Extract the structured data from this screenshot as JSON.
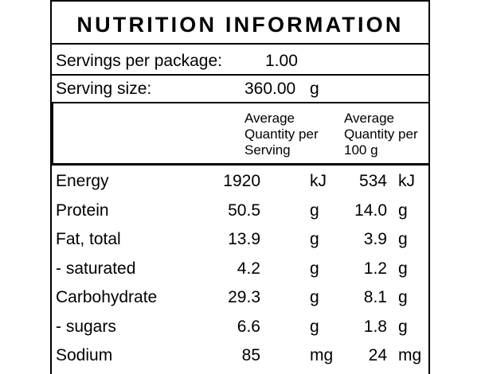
{
  "title": "NUTRITION INFORMATION",
  "servings": {
    "label": "Servings per package:",
    "value": "1.00"
  },
  "serving_size": {
    "label": "Serving size:",
    "value": "360.00",
    "unit": "g"
  },
  "headers": {
    "per_serving": "Average\nQuantity per\nServing",
    "per_100g": "Average\nQuantity per\n100 g"
  },
  "rows": [
    {
      "name": "Energy",
      "serving": "1920",
      "serving_unit": "kJ",
      "per100": "534",
      "per100_unit": "kJ"
    },
    {
      "name": "Protein",
      "serving": "50.5",
      "serving_unit": "g",
      "per100": "14.0",
      "per100_unit": "g"
    },
    {
      "name": "Fat, total",
      "serving": "13.9",
      "serving_unit": "g",
      "per100": "3.9",
      "per100_unit": "g"
    },
    {
      "name": "- saturated",
      "serving": "4.2",
      "serving_unit": "g",
      "per100": "1.2",
      "per100_unit": "g"
    },
    {
      "name": "Carbohydrate",
      "serving": "29.3",
      "serving_unit": "g",
      "per100": "8.1",
      "per100_unit": "g"
    },
    {
      "name": "- sugars",
      "serving": "6.6",
      "serving_unit": "g",
      "per100": "1.8",
      "per100_unit": "g"
    },
    {
      "name": "Sodium",
      "serving": "85",
      "serving_unit": "mg",
      "per100": "24",
      "per100_unit": "mg"
    }
  ]
}
